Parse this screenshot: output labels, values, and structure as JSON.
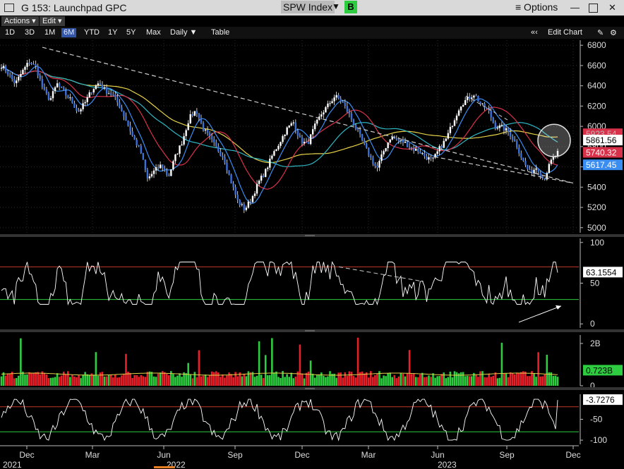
{
  "window": {
    "title": "G 153: Launchpad GPC",
    "ticker": "SPW Index",
    "ticker_caret": "▼",
    "b_button": "B",
    "options_label": "≡ Options"
  },
  "menus": {
    "actions": "Actions ▾",
    "edit": "Edit ▾"
  },
  "periods": [
    "1D",
    "3D",
    "1M",
    "6M",
    "YTD",
    "1Y",
    "5Y",
    "Max",
    "Daily ▼",
    "Table"
  ],
  "active_period": "6M",
  "toolbar_right": {
    "nav": "«‹",
    "edit_chart": "Edit Chart"
  },
  "colors": {
    "up": "#2ecc40",
    "down": "#e8202a",
    "sma_yellow": "#e6d24a",
    "sma_teal": "#2fb7c4",
    "sma_red": "#d8324a",
    "sma_blue": "#3a8ef2",
    "rsi_line": "#ffffff",
    "upper_band": "#c0392b",
    "lower_band": "#2ecc40",
    "trend": "#cccccc"
  },
  "chart_data": [
    {
      "type": "line",
      "panel": "price",
      "ylim": [
        4950,
        6850
      ],
      "yticks": [
        5000,
        5200,
        5400,
        5600,
        5800,
        6000,
        6200,
        6400,
        6600,
        6800
      ],
      "series": [
        {
          "values": [
            6600,
            6520,
            6420,
            6540,
            6640,
            6580,
            6360,
            6260,
            6420,
            6330,
            6260,
            6140,
            6230,
            6360,
            6430,
            6350,
            6310,
            6200,
            6050,
            5880,
            5760,
            5480,
            5560,
            5620,
            5500,
            5700,
            5850,
            6080,
            6160,
            5980,
            5880,
            5780,
            5690,
            5460,
            5260,
            5180,
            5290,
            5450,
            5560,
            5720,
            5840,
            5970,
            6040,
            5860,
            5820,
            5990,
            6120,
            6210,
            6300,
            6240,
            6120,
            5980,
            5840,
            5700,
            5580,
            5760,
            5900,
            5860,
            5840,
            5780,
            5760,
            5700,
            5660,
            5780,
            5880,
            6050,
            6210,
            6270,
            6320,
            6210,
            6160,
            6000,
            5990,
            5940,
            5830,
            5660,
            5540,
            5600,
            5470,
            5650,
            5740
          ]
        }
      ],
      "annotations": {
        "last_price": "5861.56",
        "sma_a": "5923.54",
        "sma_b": "5740.32",
        "sma_c": "5617.45"
      }
    },
    {
      "type": "line",
      "panel": "oscillator",
      "ylim": [
        -5,
        105
      ],
      "yticks": [
        0,
        50,
        100
      ],
      "bands": [
        30,
        70
      ],
      "last_value": "63.1554"
    },
    {
      "type": "bar",
      "panel": "volume",
      "ylim": [
        0,
        2.4
      ],
      "yticks": [
        {
          "value": 0,
          "label": "0"
        },
        {
          "value": 2,
          "label": "2B"
        }
      ],
      "last_value": "0.723B"
    },
    {
      "type": "line",
      "panel": "williams",
      "ylim": [
        -110,
        10
      ],
      "yticks": [
        -50,
        -100
      ],
      "bands": [
        -20,
        -80
      ],
      "last_value": "-3.7276"
    }
  ],
  "xaxis": {
    "months": [
      "Dec",
      "Mar",
      "Jun",
      "Sep",
      "Dec",
      "Mar",
      "Jun",
      "Sep",
      "Dec"
    ],
    "years": [
      "2021",
      "2022",
      "2023"
    ]
  }
}
